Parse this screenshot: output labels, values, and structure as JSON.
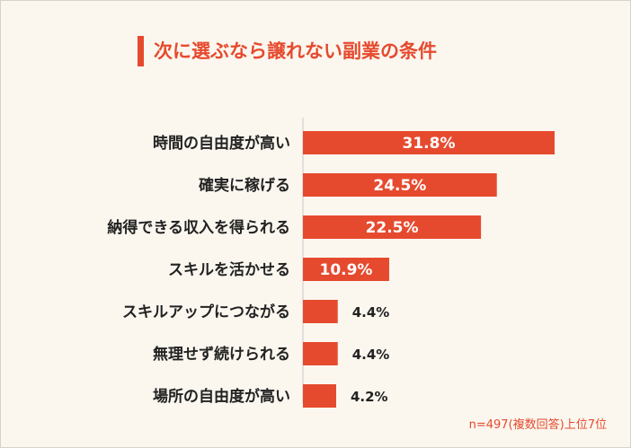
{
  "title": "次に選ぶなら譲れない副業の条件",
  "footnote": "n=497(複数回答)上位7位",
  "colors": {
    "bar": "#e64a2e",
    "accent": "#e64a2e",
    "label": "#222222",
    "axis": "#c8c8c8"
  },
  "chart_data": {
    "type": "bar",
    "orientation": "horizontal",
    "title": "次に選ぶなら譲れない副業の条件",
    "categories": [
      "時間の自由度が高い",
      "確実に稼げる",
      "納得できる収入を得られる",
      "スキルを活かせる",
      "スキルアップにつながる",
      "無理せず続けられる",
      "場所の自由度が高い"
    ],
    "values": [
      31.8,
      24.5,
      22.5,
      10.9,
      4.4,
      4.4,
      4.2
    ],
    "value_labels": [
      "31.8%",
      "24.5%",
      "22.5%",
      "10.9%",
      "4.4%",
      "4.4%",
      "4.2%"
    ],
    "unit": "%",
    "xlim": [
      0,
      31.8
    ],
    "grid": false,
    "legend": "none"
  }
}
